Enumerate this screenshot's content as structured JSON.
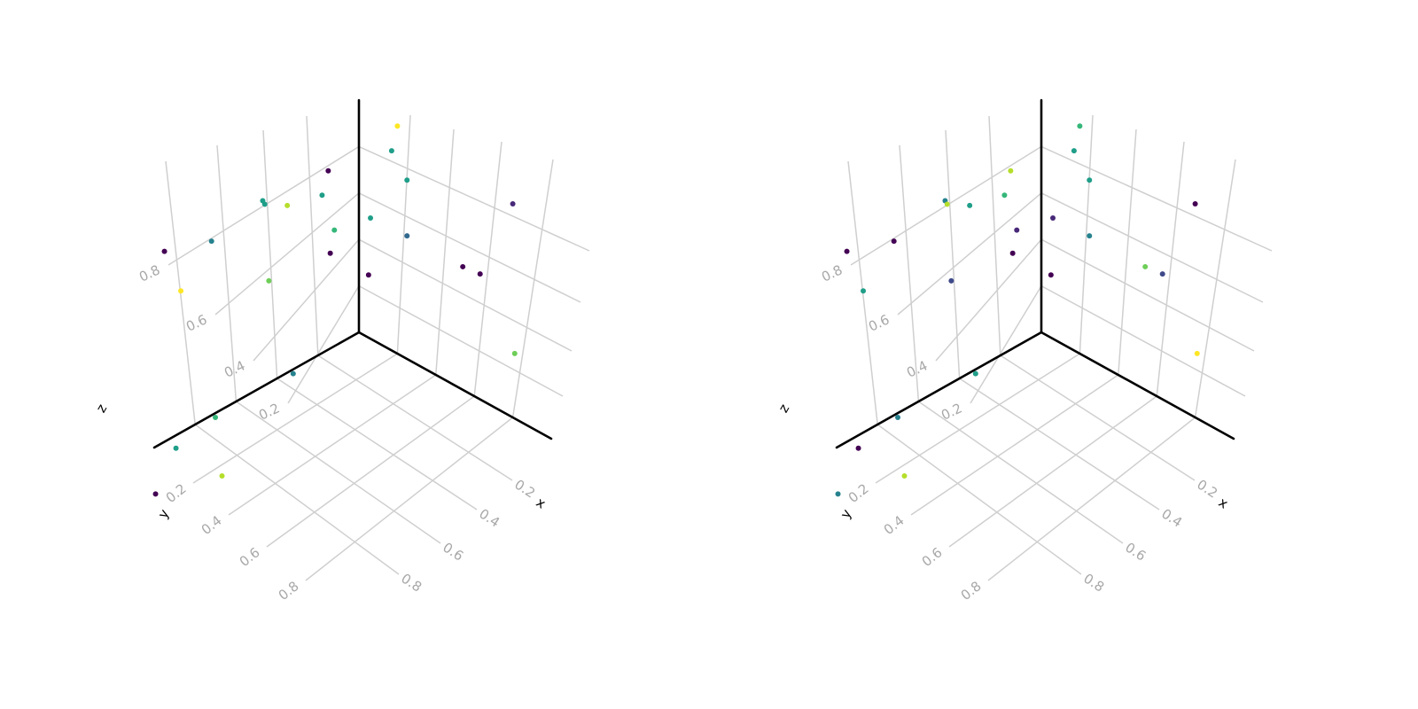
{
  "chart_data": [
    {
      "type": "scatter",
      "dimensions": 3,
      "xlabel": "x",
      "ylabel": "y",
      "zlabel": "z",
      "xticks": [
        "0.2",
        "0.4",
        "0.6",
        "0.8"
      ],
      "yticks": [
        "0.2",
        "0.4",
        "0.6",
        "0.8"
      ],
      "zticks": [
        "0.2",
        "0.4",
        "0.6",
        "0.8"
      ],
      "xlim": [
        0,
        1
      ],
      "ylim": [
        0,
        1
      ],
      "zlim": [
        0,
        1
      ],
      "grid": true,
      "colormap": "viridis",
      "wall_points": {
        "yz": [
          {
            "u": 0.18,
            "v": 0.68,
            "c": 0.5
          },
          {
            "u": 0.15,
            "v": 0.77,
            "c": 0.0
          },
          {
            "u": 0.35,
            "v": 0.72,
            "c": 0.85
          },
          {
            "u": 0.47,
            "v": 0.8,
            "c": 0.6
          },
          {
            "u": 0.46,
            "v": 0.78,
            "c": 0.5
          },
          {
            "u": 0.72,
            "v": 0.75,
            "c": 0.45
          },
          {
            "u": 0.12,
            "v": 0.5,
            "c": 0.7
          },
          {
            "u": 0.14,
            "v": 0.41,
            "c": 0.05
          },
          {
            "u": 0.44,
            "v": 0.44,
            "c": 0.75
          },
          {
            "u": 0.87,
            "v": 0.61,
            "c": 0.95
          },
          {
            "u": 0.95,
            "v": 0.82,
            "c": 0.05
          }
        ],
        "xz": [
          {
            "u": 0.25,
            "v": 0.53,
            "c": 0.3
          },
          {
            "u": 0.06,
            "v": 0.52,
            "c": 0.55
          },
          {
            "u": 0.05,
            "v": 0.27,
            "c": 0.0
          },
          {
            "u": 0.2,
            "v": 0.98,
            "c": 1.0
          },
          {
            "u": 0.17,
            "v": 0.86,
            "c": 0.5
          },
          {
            "u": 0.25,
            "v": 0.77,
            "c": 0.5
          },
          {
            "u": 0.8,
            "v": 0.92,
            "c": 0.15
          },
          {
            "u": 0.54,
            "v": 0.53,
            "c": 0.0
          },
          {
            "u": 0.63,
            "v": 0.54,
            "c": 0.0
          },
          {
            "u": 0.81,
            "v": 0.28,
            "c": 0.8
          }
        ],
        "xy": [
          {
            "u": 0.02,
            "v": 0.34,
            "c": 0.45
          },
          {
            "u": 0.02,
            "v": 0.72,
            "c": 0.65
          },
          {
            "u": 0.06,
            "v": 0.95,
            "c": 0.6
          },
          {
            "u": 0.31,
            "v": 0.96,
            "c": 0.9
          },
          {
            "u": 0.22,
            "v": 1.2,
            "c": 0.05
          }
        ]
      }
    },
    {
      "type": "scatter",
      "dimensions": 3,
      "xlabel": "x",
      "ylabel": "y",
      "zlabel": "z",
      "xticks": [
        "0.2",
        "0.4",
        "0.6",
        "0.8"
      ],
      "yticks": [
        "0.2",
        "0.4",
        "0.6",
        "0.8"
      ],
      "zticks": [
        "0.2",
        "0.4",
        "0.6",
        "0.8"
      ],
      "xlim": [
        0,
        1
      ],
      "ylim": [
        0,
        1
      ],
      "zlim": [
        0,
        1
      ],
      "grid": true,
      "colormap": "viridis",
      "wall_points": {
        "yz": [
          {
            "u": 0.18,
            "v": 0.68,
            "c": 0.65
          },
          {
            "u": 0.15,
            "v": 0.77,
            "c": 0.85
          },
          {
            "u": 0.35,
            "v": 0.72,
            "c": 0.5
          },
          {
            "u": 0.47,
            "v": 0.8,
            "c": 0.45
          },
          {
            "u": 0.46,
            "v": 0.78,
            "c": 0.85
          },
          {
            "u": 0.72,
            "v": 0.75,
            "c": 0.05
          },
          {
            "u": 0.12,
            "v": 0.5,
            "c": 0.15
          },
          {
            "u": 0.14,
            "v": 0.41,
            "c": 0.05
          },
          {
            "u": 0.44,
            "v": 0.44,
            "c": 0.2
          },
          {
            "u": 0.87,
            "v": 0.61,
            "c": 0.55
          },
          {
            "u": 0.95,
            "v": 0.82,
            "c": 0.05
          }
        ],
        "xz": [
          {
            "u": 0.25,
            "v": 0.53,
            "c": 0.45
          },
          {
            "u": 0.06,
            "v": 0.52,
            "c": 0.1
          },
          {
            "u": 0.05,
            "v": 0.27,
            "c": 0.0
          },
          {
            "u": 0.2,
            "v": 0.98,
            "c": 0.7
          },
          {
            "u": 0.17,
            "v": 0.86,
            "c": 0.5
          },
          {
            "u": 0.25,
            "v": 0.77,
            "c": 0.5
          },
          {
            "u": 0.8,
            "v": 0.92,
            "c": 0.05
          },
          {
            "u": 0.54,
            "v": 0.53,
            "c": 0.75
          },
          {
            "u": 0.63,
            "v": 0.54,
            "c": 0.2
          },
          {
            "u": 0.81,
            "v": 0.28,
            "c": 0.95
          }
        ],
        "xy": [
          {
            "u": 0.02,
            "v": 0.34,
            "c": 0.55
          },
          {
            "u": 0.02,
            "v": 0.72,
            "c": 0.45
          },
          {
            "u": 0.06,
            "v": 0.95,
            "c": 0.0
          },
          {
            "u": 0.31,
            "v": 0.96,
            "c": 0.9
          },
          {
            "u": 0.22,
            "v": 1.2,
            "c": 0.45
          }
        ]
      }
    }
  ]
}
